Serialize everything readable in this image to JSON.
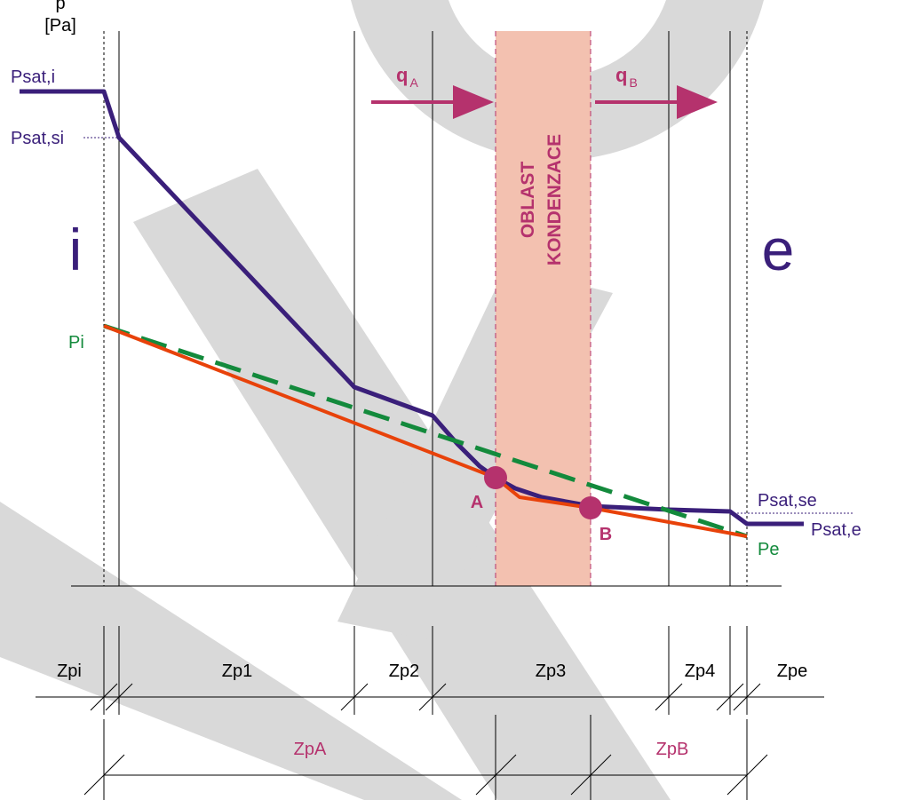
{
  "axis": {
    "symbol": "p",
    "unit": "[Pa]"
  },
  "labels": {
    "psat_i": "Psat,i",
    "psat_si": "Psat,si",
    "psat_se": "Psat,se",
    "psat_e": "Psat,e",
    "p_i": "Pi",
    "p_e": "Pe",
    "interior": "i",
    "exterior": "e",
    "point_a": "A",
    "point_b": "B",
    "flux_a": {
      "main": "q",
      "sub": "A"
    },
    "flux_b": {
      "main": "q",
      "sub": "B"
    },
    "zone_line1": "OBLAST",
    "zone_line2": "KONDENZACE"
  },
  "resistances": {
    "row1": [
      "Zpi",
      "Zp1",
      "Zp2",
      "Zp3",
      "Zp4",
      "Zpe"
    ],
    "row2": [
      "ZpA",
      "ZpB"
    ]
  },
  "colors": {
    "saturation_curve": "#3a1f7a",
    "partial_pressure_line": "#e8420a",
    "linear_assumption_dashed": "#138a3c",
    "condensation_zone": "#f3c1b0",
    "accent_magenta": "#b5326d",
    "watermark": "#d9d9d9"
  }
}
